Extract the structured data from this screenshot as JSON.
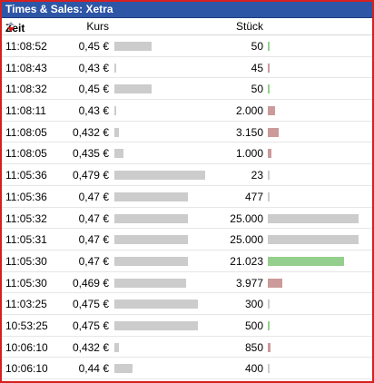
{
  "title": "Times & Sales: Xetra",
  "columns": {
    "zeit": "Zeit",
    "kurs": "Kurs",
    "stueck": "Stück"
  },
  "colors": {
    "title_bg": "#2e56a6",
    "border": "#d61f1f",
    "price_bar": "#cccccc",
    "qty_neutral": "#cccccc",
    "qty_up": "#95cf8d",
    "qty_down": "#cc9a9a"
  },
  "rows": [
    {
      "time": "11:08:52",
      "price": "0,45 €",
      "price_fill": 0.41,
      "qty": "50",
      "qty_fill": 0.02,
      "dir": "up"
    },
    {
      "time": "11:08:43",
      "price": "0,43 €",
      "price_fill": 0.01,
      "qty": "45",
      "qty_fill": 0.02,
      "dir": "down"
    },
    {
      "time": "11:08:32",
      "price": "0,45 €",
      "price_fill": 0.41,
      "qty": "50",
      "qty_fill": 0.02,
      "dir": "up"
    },
    {
      "time": "11:08:11",
      "price": "0,43 €",
      "price_fill": 0.01,
      "qty": "2.000",
      "qty_fill": 0.08,
      "dir": "down"
    },
    {
      "time": "11:08:05",
      "price": "0,432 €",
      "price_fill": 0.05,
      "qty": "3.150",
      "qty_fill": 0.12,
      "dir": "down"
    },
    {
      "time": "11:08:05",
      "price": "0,435 €",
      "price_fill": 0.1,
      "qty": "1.000",
      "qty_fill": 0.04,
      "dir": "down"
    },
    {
      "time": "11:05:36",
      "price": "0,479 €",
      "price_fill": 1.0,
      "qty": "23",
      "qty_fill": 0.01,
      "dir": "neutral"
    },
    {
      "time": "11:05:36",
      "price": "0,47 €",
      "price_fill": 0.81,
      "qty": "477",
      "qty_fill": 0.02,
      "dir": "neutral"
    },
    {
      "time": "11:05:32",
      "price": "0,47 €",
      "price_fill": 0.81,
      "qty": "25.000",
      "qty_fill": 1.0,
      "dir": "neutral"
    },
    {
      "time": "11:05:31",
      "price": "0,47 €",
      "price_fill": 0.81,
      "qty": "25.000",
      "qty_fill": 1.0,
      "dir": "neutral"
    },
    {
      "time": "11:05:30",
      "price": "0,47 €",
      "price_fill": 0.81,
      "qty": "21.023",
      "qty_fill": 0.84,
      "dir": "up"
    },
    {
      "time": "11:05:30",
      "price": "0,469 €",
      "price_fill": 0.79,
      "qty": "3.977",
      "qty_fill": 0.16,
      "dir": "down"
    },
    {
      "time": "11:03:25",
      "price": "0,475 €",
      "price_fill": 0.92,
      "qty": "300",
      "qty_fill": 0.02,
      "dir": "neutral"
    },
    {
      "time": "10:53:25",
      "price": "0,475 €",
      "price_fill": 0.92,
      "qty": "500",
      "qty_fill": 0.02,
      "dir": "up"
    },
    {
      "time": "10:06:10",
      "price": "0,432 €",
      "price_fill": 0.05,
      "qty": "850",
      "qty_fill": 0.03,
      "dir": "down"
    },
    {
      "time": "10:06:10",
      "price": "0,44 €",
      "price_fill": 0.2,
      "qty": "400",
      "qty_fill": 0.02,
      "dir": "neutral"
    }
  ]
}
